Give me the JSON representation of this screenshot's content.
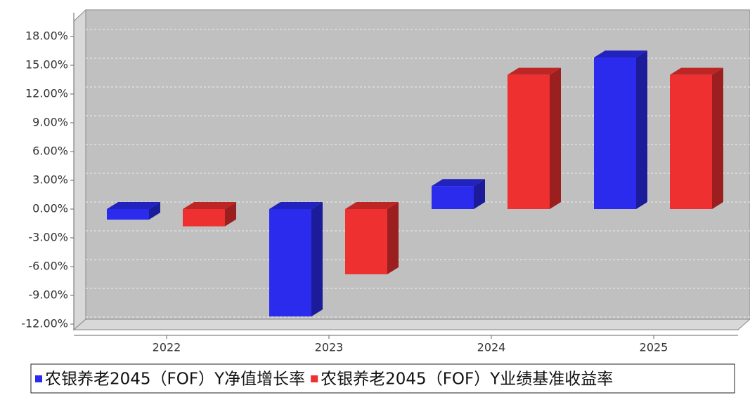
{
  "chart_data": {
    "type": "bar3d",
    "categories": [
      "2022",
      "2023",
      "2024",
      "2025"
    ],
    "series": [
      {
        "name": "农银养老2045（FOF）Y净值增长率",
        "color": "#2b2bee",
        "values": [
          -1.1,
          -11.2,
          2.4,
          15.8
        ]
      },
      {
        "name": "农银养老2045（FOF）Y业绩基准收益率",
        "color": "#ee3030",
        "values": [
          -1.8,
          -6.8,
          14.0,
          14.0
        ]
      }
    ],
    "ylim": [
      -12.2,
      20.8
    ],
    "yticks": [
      {
        "value": -12,
        "label": "-12.00%"
      },
      {
        "value": -9,
        "label": "-9.00%"
      },
      {
        "value": -6,
        "label": "-6.00%"
      },
      {
        "value": -3,
        "label": "-3.00%"
      },
      {
        "value": 0,
        "label": "0.00%"
      },
      {
        "value": 3,
        "label": "3.00%"
      },
      {
        "value": 6,
        "label": "6.00%"
      },
      {
        "value": 9,
        "label": "9.00%"
      },
      {
        "value": 12,
        "label": "12.00%"
      },
      {
        "value": 15,
        "label": "15.00%"
      },
      {
        "value": 18,
        "label": "18.00%"
      }
    ],
    "grid": true
  }
}
